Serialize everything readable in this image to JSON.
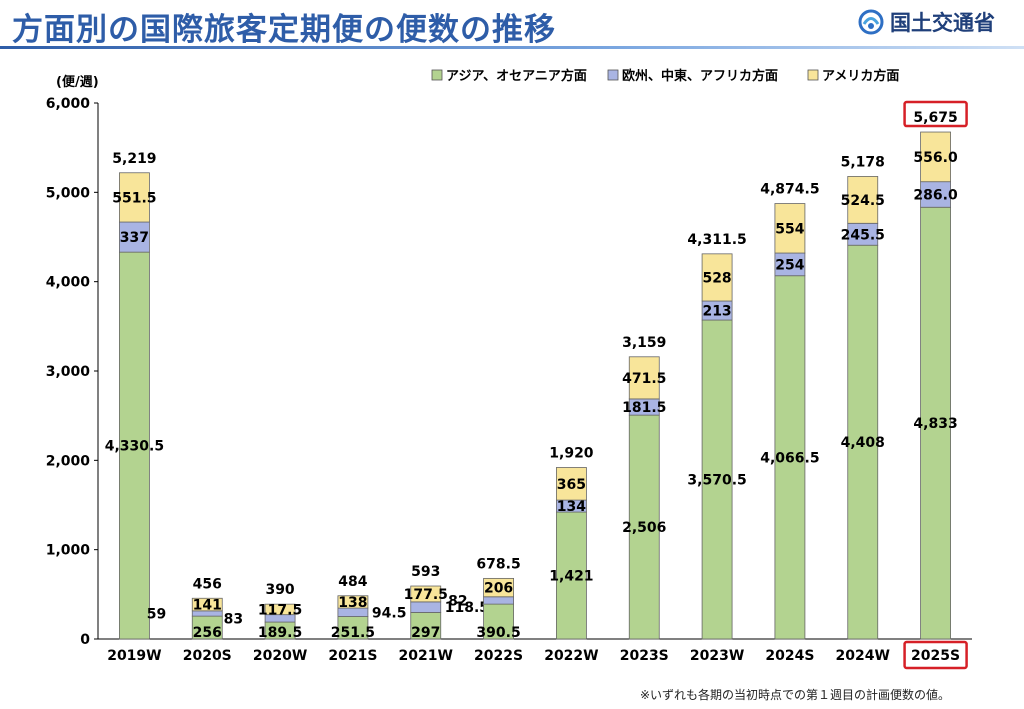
{
  "header": {
    "title": "方面別の国際旅客定期便の便数の推移",
    "logo_text": "国土交通省"
  },
  "footnote": "※いずれも各期の当初時点での第１週目の計画便数の値。",
  "colors": {
    "asia": "#b3d390",
    "europe": "#a9b4e3",
    "america": "#f8e59a",
    "highlight": "#d62027",
    "title": "#2e5da8"
  },
  "chart_data": {
    "type": "bar",
    "stacked": true,
    "ylabel": "(便/週)",
    "ylim": [
      0,
      6000
    ],
    "yticks": [
      "0",
      "1,000",
      "2,000",
      "3,000",
      "4,000",
      "5,000",
      "6,000"
    ],
    "grid": false,
    "legend_position": "top-right",
    "categories": [
      "2019W",
      "2020S",
      "2020W",
      "2021S",
      "2021W",
      "2022S",
      "2022W",
      "2023S",
      "2023W",
      "2024S",
      "2024W",
      "2025S"
    ],
    "series": [
      {
        "name": "アジア、オセアニア方面",
        "color": "#b3d390",
        "values": [
          4330.5,
          256,
          189.5,
          251.5,
          297,
          390.5,
          1421,
          2506,
          3570.5,
          4066.5,
          4408,
          4833
        ],
        "labels": [
          "4,330.5",
          "256",
          "189.5",
          "251.5",
          "297",
          "390.5",
          "1,421",
          "2,506",
          "3,570.5",
          "4,066.5",
          "4,408",
          "4,833"
        ]
      },
      {
        "name": "欧州、中東、アフリカ方面",
        "color": "#a9b4e3",
        "values": [
          337,
          59,
          83,
          94.5,
          118.5,
          82,
          134,
          181.5,
          213,
          254,
          245.5,
          286
        ],
        "labels": [
          "337",
          "59",
          "83",
          "94.5",
          "118.5",
          "82",
          "134",
          "181.5",
          "213",
          "254",
          "245.5",
          "286.0"
        ]
      },
      {
        "name": "アメリカ方面",
        "color": "#f8e59a",
        "values": [
          551.5,
          141,
          117.5,
          138,
          177.5,
          206,
          365,
          471.5,
          528,
          554,
          524.5,
          556
        ],
        "labels": [
          "551.5",
          "141",
          "117.5",
          "138",
          "177.5",
          "206",
          "365",
          "471.5",
          "528",
          "554",
          "524.5",
          "556.0"
        ]
      }
    ],
    "totals": [
      5219,
      456,
      390,
      484,
      593,
      678.5,
      1920,
      3159,
      4311.5,
      4874.5,
      5178,
      5675
    ],
    "total_labels": [
      "5,219",
      "456",
      "390",
      "484",
      "593",
      "678.5",
      "1,920",
      "3,159",
      "4,311.5",
      "4,874.5",
      "5,178",
      "5,675"
    ],
    "highlighted_category": "2025S"
  }
}
